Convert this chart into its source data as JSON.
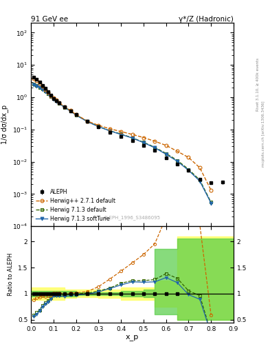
{
  "title_left": "91 GeV ee",
  "title_right": "γ*/Z (Hadronic)",
  "ylabel_main": "1/σ dσ/dx_p",
  "ylabel_ratio": "Ratio to ALEPH",
  "xlabel": "x_p",
  "right_label_top": "Rivet 3.1.10, ≥ 400k events",
  "right_label_bot": "mcplots.cern.ch [arXiv:1306.3436]",
  "watermark": "ALEPH_1996_S3486095",
  "aleph_x": [
    0.013,
    0.025,
    0.038,
    0.05,
    0.063,
    0.075,
    0.088,
    0.1,
    0.113,
    0.125,
    0.15,
    0.175,
    0.2,
    0.25,
    0.3,
    0.35,
    0.4,
    0.45,
    0.5,
    0.55,
    0.6,
    0.65,
    0.7,
    0.75,
    0.8,
    0.85
  ],
  "aleph_y": [
    4.2,
    3.6,
    2.9,
    2.3,
    1.85,
    1.48,
    1.15,
    0.92,
    0.79,
    0.66,
    0.5,
    0.38,
    0.285,
    0.175,
    0.118,
    0.082,
    0.06,
    0.044,
    0.032,
    0.022,
    0.013,
    0.0085,
    0.0055,
    0.0028,
    0.0022,
    0.0023
  ],
  "aleph_yerr": [
    0.25,
    0.22,
    0.18,
    0.14,
    0.11,
    0.09,
    0.07,
    0.055,
    0.048,
    0.038,
    0.028,
    0.022,
    0.018,
    0.011,
    0.007,
    0.005,
    0.0035,
    0.0026,
    0.0019,
    0.0013,
    0.0009,
    0.0006,
    0.0004,
    0.0003,
    0.0002,
    0.0003
  ],
  "herwig_pp_x": [
    0.013,
    0.025,
    0.038,
    0.05,
    0.063,
    0.075,
    0.088,
    0.1,
    0.113,
    0.125,
    0.15,
    0.175,
    0.2,
    0.25,
    0.3,
    0.35,
    0.4,
    0.45,
    0.5,
    0.55,
    0.6,
    0.65,
    0.7,
    0.75,
    0.8
  ],
  "herwig_pp_y": [
    3.7,
    3.3,
    2.7,
    2.2,
    1.75,
    1.42,
    1.12,
    0.93,
    0.8,
    0.67,
    0.5,
    0.385,
    0.29,
    0.182,
    0.134,
    0.105,
    0.086,
    0.07,
    0.056,
    0.043,
    0.032,
    0.021,
    0.0135,
    0.0065,
    0.0013
  ],
  "herwig713_x": [
    0.013,
    0.025,
    0.038,
    0.05,
    0.063,
    0.075,
    0.088,
    0.1,
    0.113,
    0.125,
    0.15,
    0.175,
    0.2,
    0.25,
    0.3,
    0.35,
    0.4,
    0.45,
    0.5,
    0.55,
    0.6,
    0.65,
    0.7,
    0.75,
    0.8
  ],
  "herwig713_y": [
    2.5,
    2.3,
    2.0,
    1.78,
    1.53,
    1.28,
    1.06,
    0.9,
    0.77,
    0.645,
    0.485,
    0.375,
    0.283,
    0.177,
    0.124,
    0.091,
    0.072,
    0.055,
    0.04,
    0.028,
    0.018,
    0.011,
    0.0058,
    0.0027,
    0.00055
  ],
  "herwig713st_x": [
    0.013,
    0.025,
    0.038,
    0.05,
    0.063,
    0.075,
    0.088,
    0.1,
    0.113,
    0.125,
    0.15,
    0.175,
    0.2,
    0.25,
    0.3,
    0.35,
    0.4,
    0.45,
    0.5,
    0.55,
    0.6,
    0.65,
    0.7,
    0.75,
    0.8
  ],
  "herwig713st_y": [
    2.4,
    2.2,
    1.95,
    1.73,
    1.49,
    1.25,
    1.03,
    0.88,
    0.755,
    0.632,
    0.474,
    0.368,
    0.277,
    0.174,
    0.122,
    0.09,
    0.07,
    0.054,
    0.039,
    0.027,
    0.017,
    0.0103,
    0.0054,
    0.0025,
    0.00052
  ],
  "ratio_herwig_pp_x": [
    0.013,
    0.025,
    0.038,
    0.05,
    0.063,
    0.075,
    0.088,
    0.1,
    0.113,
    0.125,
    0.15,
    0.175,
    0.2,
    0.25,
    0.3,
    0.35,
    0.4,
    0.45,
    0.5,
    0.55,
    0.6,
    0.65,
    0.7,
    0.75,
    0.8
  ],
  "ratio_herwig_pp_y": [
    0.88,
    0.92,
    0.93,
    0.957,
    0.946,
    0.959,
    0.974,
    1.011,
    1.013,
    1.015,
    1.0,
    1.013,
    1.018,
    1.04,
    1.136,
    1.28,
    1.433,
    1.59,
    1.75,
    1.955,
    2.46,
    2.47,
    2.45,
    2.32,
    0.59
  ],
  "ratio_herwig713_x": [
    0.013,
    0.025,
    0.038,
    0.05,
    0.063,
    0.075,
    0.088,
    0.1,
    0.113,
    0.125,
    0.15,
    0.175,
    0.2,
    0.25,
    0.3,
    0.35,
    0.4,
    0.45,
    0.5,
    0.55,
    0.6,
    0.65,
    0.7,
    0.75,
    0.8
  ],
  "ratio_herwig713_y": [
    0.595,
    0.639,
    0.69,
    0.774,
    0.827,
    0.865,
    0.922,
    0.978,
    0.975,
    0.977,
    0.97,
    0.987,
    0.993,
    1.011,
    1.051,
    1.11,
    1.2,
    1.25,
    1.25,
    1.27,
    1.385,
    1.294,
    1.055,
    0.964,
    0.25
  ],
  "ratio_herwig713st_x": [
    0.013,
    0.025,
    0.038,
    0.05,
    0.063,
    0.075,
    0.088,
    0.1,
    0.113,
    0.125,
    0.15,
    0.175,
    0.2,
    0.25,
    0.3,
    0.35,
    0.4,
    0.45,
    0.5,
    0.55,
    0.6,
    0.65,
    0.7,
    0.75,
    0.8
  ],
  "ratio_herwig713st_y": [
    0.571,
    0.611,
    0.672,
    0.752,
    0.805,
    0.845,
    0.896,
    0.957,
    0.956,
    0.958,
    0.948,
    0.968,
    0.972,
    0.994,
    1.034,
    1.098,
    1.167,
    1.227,
    1.219,
    1.227,
    1.308,
    1.212,
    0.982,
    0.893,
    0.236
  ],
  "band_yellow_edges": [
    0.0,
    0.05,
    0.1,
    0.15,
    0.2,
    0.3,
    0.4,
    0.5,
    0.55,
    0.65,
    0.7,
    0.75,
    0.9
  ],
  "band_yellow_low": [
    0.88,
    0.88,
    0.88,
    0.92,
    0.93,
    0.92,
    0.88,
    0.88,
    0.75,
    0.5,
    0.5,
    0.5,
    0.5
  ],
  "band_yellow_high": [
    1.12,
    1.12,
    1.12,
    1.08,
    1.08,
    1.08,
    1.12,
    1.12,
    1.25,
    2.1,
    2.1,
    2.1,
    2.1
  ],
  "band_green_edges": [
    0.0,
    0.1,
    0.2,
    0.3,
    0.4,
    0.5,
    0.55,
    0.65,
    0.7,
    0.9
  ],
  "band_green_low": [
    0.95,
    0.95,
    0.97,
    0.97,
    0.95,
    0.93,
    0.6,
    0.5,
    0.5,
    0.5
  ],
  "band_green_high": [
    1.05,
    1.05,
    1.03,
    1.03,
    1.05,
    1.08,
    1.85,
    2.05,
    2.05,
    2.05
  ],
  "color_aleph": "#000000",
  "color_herwig_pp": "#cc6600",
  "color_herwig713": "#336600",
  "color_herwig713st": "#2266aa",
  "color_band_yellow": "#ffff66",
  "color_band_green": "#55cc44",
  "ylim_main": [
    0.0001,
    200.0
  ],
  "ylim_ratio": [
    0.44,
    2.29
  ],
  "xlim": [
    0.0,
    0.9
  ],
  "yticks_ratio": [
    0.5,
    1.0,
    1.5,
    2.0
  ],
  "ytick_ratio_labels": [
    "0.5",
    "1",
    "1.5",
    "2"
  ]
}
